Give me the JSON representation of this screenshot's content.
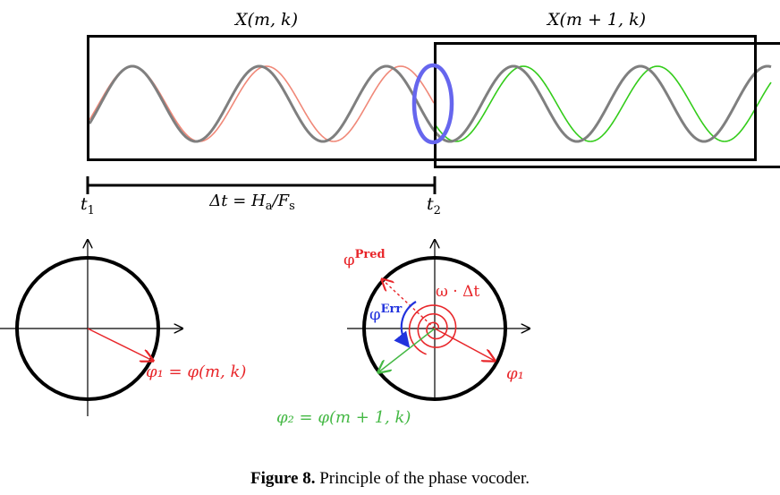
{
  "frames": {
    "left_label": "X(m, k)",
    "right_label": "X(m + 1, k)"
  },
  "time": {
    "t1": "t",
    "t1_sub": "1",
    "t2": "t",
    "t2_sub": "2",
    "delta_parts": [
      "Δt = H",
      "a",
      "/F",
      "s"
    ]
  },
  "left_circle": {
    "phi1_label": "φ₁ = φ(m, k)"
  },
  "right_circle": {
    "pred_label": "φ",
    "pred_sup": "Pred",
    "err_label": "φ",
    "err_sup": "Err",
    "omega_label": "ω · Δt",
    "phi1_label": "φ₁",
    "phi2_label": "φ₂ = φ(m + 1, k)"
  },
  "caption": {
    "number": "Figure 8.",
    "text": " Principle of the phase vocoder."
  },
  "colors": {
    "wave_gray": "#7f7f7f",
    "wave_red": "#f08878",
    "wave_green": "#33cc1a",
    "highlight_blue": "#6666ee",
    "annotation_red": "#e8262a",
    "annotation_blue": "#2233dd",
    "annotation_green": "#44b844"
  }
}
